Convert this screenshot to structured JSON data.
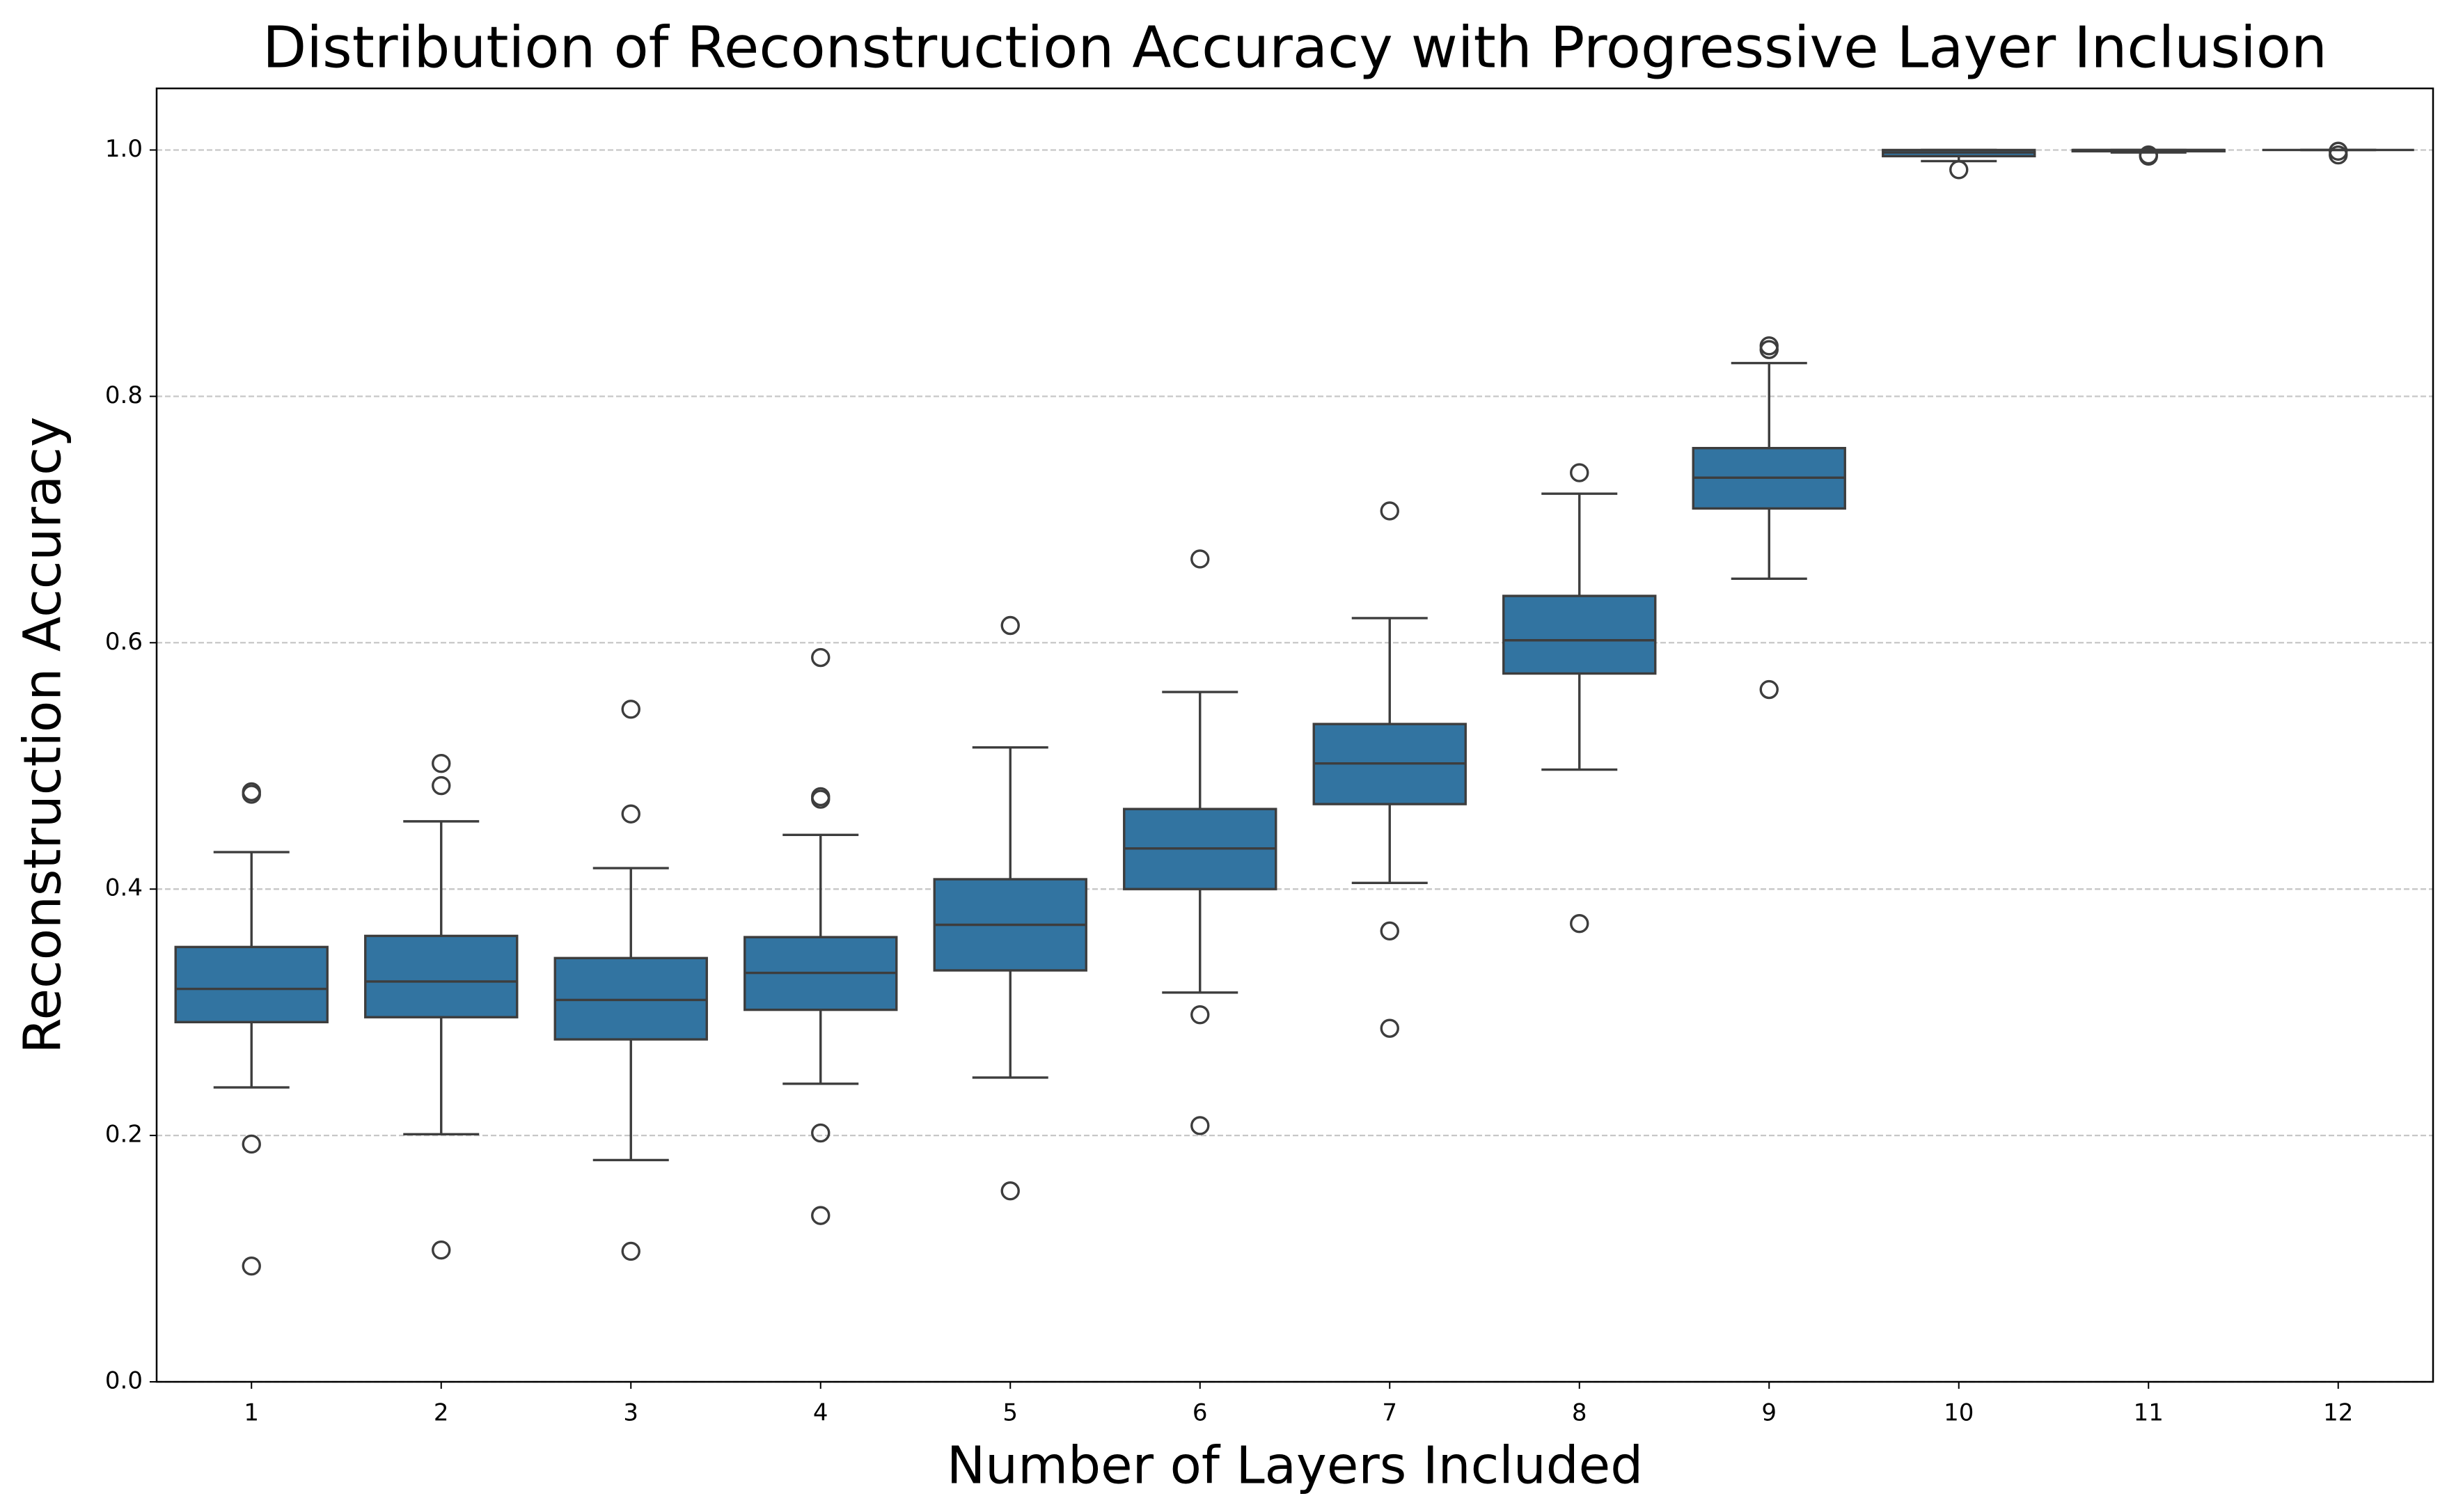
{
  "chart_data": {
    "type": "box",
    "title": "Distribution of Reconstruction Accuracy with Progressive Layer Inclusion",
    "x_label": "Number of Layers Included",
    "y_label": "Reconstruction Accuracy",
    "categories": [
      "1",
      "2",
      "3",
      "4",
      "5",
      "6",
      "7",
      "8",
      "9",
      "10",
      "11",
      "12"
    ],
    "color": "#3274a1",
    "grid": true,
    "ylim": [
      0,
      1.05
    ],
    "yticks": [
      {
        "value": 0,
        "label": "0.0"
      },
      0.2,
      0.4,
      0.6,
      0.8,
      {
        "value": 1,
        "label": "1.0"
      }
    ],
    "boxes": [
      {
        "whislo": 0.239,
        "q1": 0.292,
        "med": 0.319,
        "q3": 0.353,
        "whishi": 0.43,
        "fliers": [
          0.479,
          0.477,
          0.193,
          0.094
        ]
      },
      {
        "whislo": 0.201,
        "q1": 0.296,
        "med": 0.325,
        "q3": 0.362,
        "whishi": 0.455,
        "fliers": [
          0.502,
          0.484,
          0.107
        ]
      },
      {
        "whislo": 0.18,
        "q1": 0.278,
        "med": 0.31,
        "q3": 0.344,
        "whishi": 0.417,
        "fliers": [
          0.546,
          0.461,
          0.106
        ]
      },
      {
        "whislo": 0.242,
        "q1": 0.302,
        "med": 0.332,
        "q3": 0.361,
        "whishi": 0.444,
        "fliers": [
          0.588,
          0.475,
          0.473,
          0.202,
          0.135
        ]
      },
      {
        "whislo": 0.247,
        "q1": 0.334,
        "med": 0.371,
        "q3": 0.408,
        "whishi": 0.515,
        "fliers": [
          0.614,
          0.155
        ]
      },
      {
        "whislo": 0.316,
        "q1": 0.4,
        "med": 0.433,
        "q3": 0.465,
        "whishi": 0.56,
        "fliers": [
          0.668,
          0.298,
          0.208
        ]
      },
      {
        "whislo": 0.405,
        "q1": 0.469,
        "med": 0.502,
        "q3": 0.534,
        "whishi": 0.62,
        "fliers": [
          0.707,
          0.366,
          0.287
        ]
      },
      {
        "whislo": 0.497,
        "q1": 0.575,
        "med": 0.602,
        "q3": 0.638,
        "whishi": 0.721,
        "fliers": [
          0.738,
          0.372
        ]
      },
      {
        "whislo": 0.652,
        "q1": 0.709,
        "med": 0.734,
        "q3": 0.758,
        "whishi": 0.827,
        "fliers": [
          0.841,
          0.838,
          0.562
        ]
      },
      {
        "whislo": 0.991,
        "q1": 0.995,
        "med": 0.998,
        "q3": 1.0,
        "whishi": 1.0,
        "fliers": [
          0.984
        ]
      },
      {
        "whislo": 0.998,
        "q1": 0.999,
        "med": 1.0,
        "q3": 1.0,
        "whishi": 1.0,
        "fliers": [
          0.995,
          0.996
        ]
      },
      {
        "whislo": 1.0,
        "q1": 1.0,
        "med": 1.0,
        "q3": 1.0,
        "whishi": 1.0,
        "fliers": [
          0.996,
          0.999
        ]
      }
    ]
  }
}
